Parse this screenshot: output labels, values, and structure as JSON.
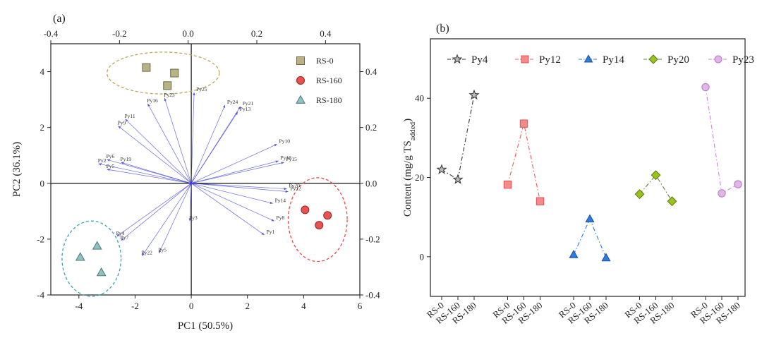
{
  "figure": {
    "panel_a_label": "(a)",
    "panel_b_label": "(b)"
  },
  "chart_data": [
    {
      "type": "scatter",
      "title": "(a)",
      "xlabel": "PC1 (50.5%)",
      "ylabel": "PC2 (36.1%)",
      "xlim": [
        -5,
        6
      ],
      "ylim": [
        -4,
        5
      ],
      "xticks": [
        -4,
        -2,
        0,
        2,
        4,
        6
      ],
      "yticks": [
        -4,
        -2,
        0,
        2,
        4
      ],
      "top_xlim": [
        -0.4,
        0.5
      ],
      "top_xticks": [
        -0.4,
        -0.2,
        0.0,
        0.2,
        0.4
      ],
      "right_ylim": [
        -0.4,
        0.5
      ],
      "right_yticks": [
        -0.4,
        -0.2,
        0.0,
        0.2,
        0.4
      ],
      "legend_position": "top-right",
      "series": [
        {
          "name": "RS-0",
          "marker": "square",
          "color": "#b9b287",
          "stroke": "#6e6a45",
          "points": [
            [
              -1.6,
              4.15
            ],
            [
              -0.6,
              3.95
            ],
            [
              -0.85,
              3.5
            ]
          ]
        },
        {
          "name": "RS-160",
          "marker": "circle",
          "color": "#e8524f",
          "stroke": "#9a2523",
          "points": [
            [
              4.05,
              -0.95
            ],
            [
              4.85,
              -1.15
            ],
            [
              4.55,
              -1.5
            ]
          ]
        },
        {
          "name": "RS-180",
          "marker": "triangle",
          "color": "#8fc0c2",
          "stroke": "#4d7a7c",
          "points": [
            [
              -3.35,
              -2.25
            ],
            [
              -3.95,
              -2.65
            ],
            [
              -3.2,
              -3.2
            ]
          ]
        }
      ],
      "ellipses": [
        {
          "group": "RS-0",
          "cx": -1.0,
          "cy": 3.95,
          "rx": 2.0,
          "ry": 0.75,
          "color": "#b8a55a"
        },
        {
          "group": "RS-160",
          "cx": 4.5,
          "cy": -1.3,
          "rx": 1.05,
          "ry": 1.5,
          "color": "#e84a4a"
        },
        {
          "group": "RS-180",
          "cx": -3.55,
          "cy": -2.7,
          "rx": 1.05,
          "ry": 1.35,
          "color": "#3aa0b5"
        }
      ],
      "loadings": [
        {
          "name": "Py25",
          "x": 0.1,
          "y": 3.25
        },
        {
          "name": "Py24",
          "x": 1.2,
          "y": 2.8
        },
        {
          "name": "Py21",
          "x": 1.75,
          "y": 2.75
        },
        {
          "name": "Py13",
          "x": 1.65,
          "y": 2.55
        },
        {
          "name": "Py16",
          "x": -1.55,
          "y": 2.85
        },
        {
          "name": "Py23",
          "x": -0.95,
          "y": 3.05
        },
        {
          "name": "Py11",
          "x": -2.35,
          "y": 2.3
        },
        {
          "name": "Py9",
          "x": -2.6,
          "y": 2.05
        },
        {
          "name": "Py10",
          "x": 3.05,
          "y": 1.4
        },
        {
          "name": "Py18",
          "x": 3.1,
          "y": 0.8
        },
        {
          "name": "Py15",
          "x": 3.3,
          "y": 0.75
        },
        {
          "name": "Py6",
          "x": -3.0,
          "y": 0.85
        },
        {
          "name": "Py19",
          "x": -2.5,
          "y": 0.75
        },
        {
          "name": "Py2",
          "x": -3.3,
          "y": 0.7
        },
        {
          "name": "Py5",
          "x": -3.0,
          "y": 0.5
        },
        {
          "name": "Py20",
          "x": 3.4,
          "y": -0.2
        },
        {
          "name": "Py12",
          "x": 3.45,
          "y": -0.3
        },
        {
          "name": "Py14",
          "x": 2.9,
          "y": -0.72
        },
        {
          "name": "Py8",
          "x": 2.95,
          "y": -1.35
        },
        {
          "name": "Py1",
          "x": 2.6,
          "y": -1.85
        },
        {
          "name": "Py3",
          "x": -0.05,
          "y": -1.35
        },
        {
          "name": "Py4",
          "x": -2.65,
          "y": -1.9
        },
        {
          "name": "Py7",
          "x": -2.5,
          "y": -2.05
        },
        {
          "name": "Py22",
          "x": -1.75,
          "y": -2.6
        },
        {
          "name": "Py5",
          "x": -1.15,
          "y": -2.5
        }
      ]
    },
    {
      "type": "line",
      "title": "(b)",
      "xlabel": "",
      "ylabel": "Content (mg/g TS",
      "ylabel_sub": "added",
      "ylabel_close": ")",
      "ylim": [
        -10,
        55
      ],
      "yticks": [
        0,
        20,
        40
      ],
      "categories": [
        "RS-0",
        "RS-160",
        "RS-180"
      ],
      "legend_position": "top",
      "series": [
        {
          "name": "Py4",
          "marker": "star",
          "color": "#bdbdbd",
          "stroke": "#333333",
          "line": "#333333",
          "values": [
            22,
            19.5,
            40.8
          ]
        },
        {
          "name": "Py12",
          "marker": "square",
          "color": "#f58a8a",
          "stroke": "#e05050",
          "line": "#f05a5a",
          "values": [
            18.2,
            33.6,
            14
          ]
        },
        {
          "name": "Py14",
          "marker": "triangle",
          "color": "#2f7be0",
          "stroke": "#1d4f9e",
          "line": "#2f7be0",
          "values": [
            0.5,
            9.5,
            -0.3
          ]
        },
        {
          "name": "Py20",
          "marker": "diamond",
          "color": "#9ac21c",
          "stroke": "#5c7a0c",
          "line": "#5a8a2a",
          "values": [
            15.8,
            20.6,
            14
          ]
        },
        {
          "name": "Py23",
          "marker": "circle",
          "color": "#e3b4ea",
          "stroke": "#b07abd",
          "line": "#c98bd6",
          "values": [
            42.8,
            16,
            18.3
          ]
        }
      ]
    }
  ]
}
